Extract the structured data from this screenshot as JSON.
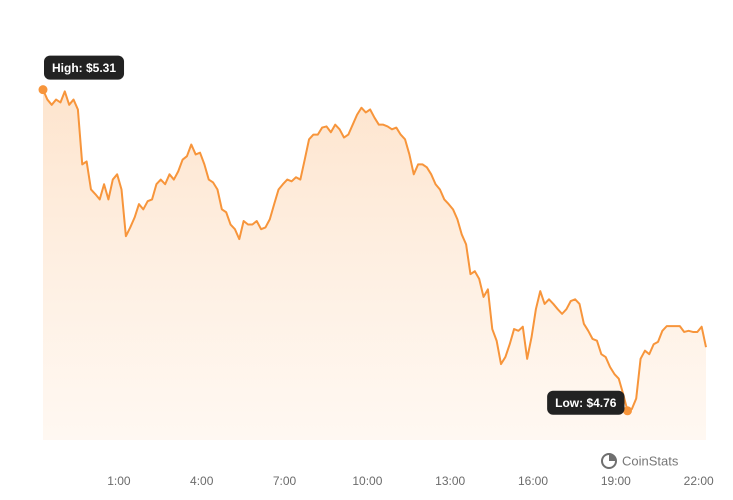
{
  "chart_data": {
    "type": "area",
    "x": [
      -1.75,
      -1.592,
      -1.434,
      -1.276,
      -1.118,
      -0.96,
      -0.802,
      -0.644,
      -0.486,
      -0.328,
      -0.17,
      -0.012,
      0.146,
      0.304,
      0.462,
      0.62,
      0.778,
      0.936,
      1.094,
      1.252,
      1.41,
      1.568,
      1.726,
      1.884,
      2.042,
      2.2,
      2.358,
      2.516,
      2.674,
      2.832,
      2.99,
      3.148,
      3.306,
      3.464,
      3.622,
      3.78,
      3.938,
      4.096,
      4.254,
      4.412,
      4.57,
      4.728,
      4.886,
      5.044,
      5.202,
      5.36,
      5.518,
      5.676,
      5.834,
      5.992,
      6.15,
      6.308,
      6.466,
      6.624,
      6.782,
      6.94,
      7.098,
      7.256,
      7.414,
      7.572,
      7.73,
      7.888,
      8.046,
      8.204,
      8.362,
      8.52,
      8.678,
      8.836,
      8.994,
      9.152,
      9.31,
      9.468,
      9.626,
      9.784,
      9.942,
      10.1,
      10.258,
      10.416,
      10.574,
      10.732,
      10.89,
      11.048,
      11.206,
      11.364,
      11.522,
      11.68,
      11.838,
      11.996,
      12.154,
      12.312,
      12.47,
      12.628,
      12.786,
      12.944,
      13.102,
      13.26,
      13.418,
      13.576,
      13.734,
      13.892,
      14.05,
      14.208,
      14.366,
      14.524,
      14.682,
      14.84,
      14.998,
      15.156,
      15.314,
      15.472,
      15.63,
      15.788,
      15.946,
      16.104,
      16.262,
      16.42,
      16.578,
      16.736,
      16.894,
      17.052,
      17.21,
      17.368,
      17.526,
      17.684,
      17.842,
      18.0,
      18.158,
      18.316,
      18.474,
      18.632,
      18.79,
      18.948,
      19.106,
      19.264,
      19.422,
      19.58,
      19.738,
      19.896,
      20.054,
      20.212,
      20.37,
      20.528,
      20.686,
      20.844,
      21.002,
      21.16,
      21.318,
      21.476,
      21.634,
      21.792,
      21.95,
      22.108,
      22.266
    ],
    "values": [
      5.31,
      5.293,
      5.284,
      5.293,
      5.288,
      5.307,
      5.284,
      5.293,
      5.276,
      5.182,
      5.187,
      5.139,
      5.131,
      5.122,
      5.148,
      5.122,
      5.156,
      5.165,
      5.139,
      5.059,
      5.074,
      5.091,
      5.114,
      5.105,
      5.119,
      5.122,
      5.148,
      5.156,
      5.148,
      5.165,
      5.156,
      5.17,
      5.19,
      5.196,
      5.216,
      5.199,
      5.202,
      5.182,
      5.156,
      5.151,
      5.139,
      5.105,
      5.1,
      5.079,
      5.071,
      5.054,
      5.085,
      5.079,
      5.079,
      5.085,
      5.071,
      5.074,
      5.088,
      5.114,
      5.139,
      5.148,
      5.156,
      5.153,
      5.16,
      5.156,
      5.19,
      5.225,
      5.233,
      5.233,
      5.245,
      5.247,
      5.237,
      5.25,
      5.242,
      5.228,
      5.233,
      5.25,
      5.267,
      5.279,
      5.271,
      5.276,
      5.262,
      5.25,
      5.25,
      5.247,
      5.242,
      5.245,
      5.233,
      5.225,
      5.199,
      5.165,
      5.182,
      5.182,
      5.177,
      5.165,
      5.148,
      5.139,
      5.122,
      5.114,
      5.105,
      5.088,
      5.062,
      5.045,
      4.994,
      4.999,
      4.986,
      4.955,
      4.968,
      4.9,
      4.88,
      4.84,
      4.852,
      4.874,
      4.9,
      4.897,
      4.904,
      4.849,
      4.886,
      4.934,
      4.965,
      4.943,
      4.951,
      4.943,
      4.934,
      4.926,
      4.934,
      4.948,
      4.951,
      4.943,
      4.909,
      4.897,
      4.883,
      4.88,
      4.857,
      4.852,
      4.835,
      4.823,
      4.815,
      4.789,
      4.76,
      4.763,
      4.781,
      4.849,
      4.863,
      4.857,
      4.874,
      4.878,
      4.897,
      4.905,
      4.905,
      4.905,
      4.905,
      4.895,
      4.897,
      4.895,
      4.895,
      4.904,
      4.869
    ],
    "color": "#f7953b",
    "xlim": [
      -1.75,
      22.266
    ],
    "ylim": [
      4.71,
      5.395
    ],
    "xticks": [
      {
        "value": 1,
        "label": "1:00"
      },
      {
        "value": 4,
        "label": "4:00"
      },
      {
        "value": 7,
        "label": "7:00"
      },
      {
        "value": 10,
        "label": "10:00"
      },
      {
        "value": 13,
        "label": "13:00"
      },
      {
        "value": 16,
        "label": "16:00"
      },
      {
        "value": 19,
        "label": "19:00"
      },
      {
        "value": 22,
        "label": "22:00"
      }
    ],
    "annotations": [
      "High: $5.31",
      "Low: $4.76"
    ],
    "watermark": "CoinStats"
  }
}
